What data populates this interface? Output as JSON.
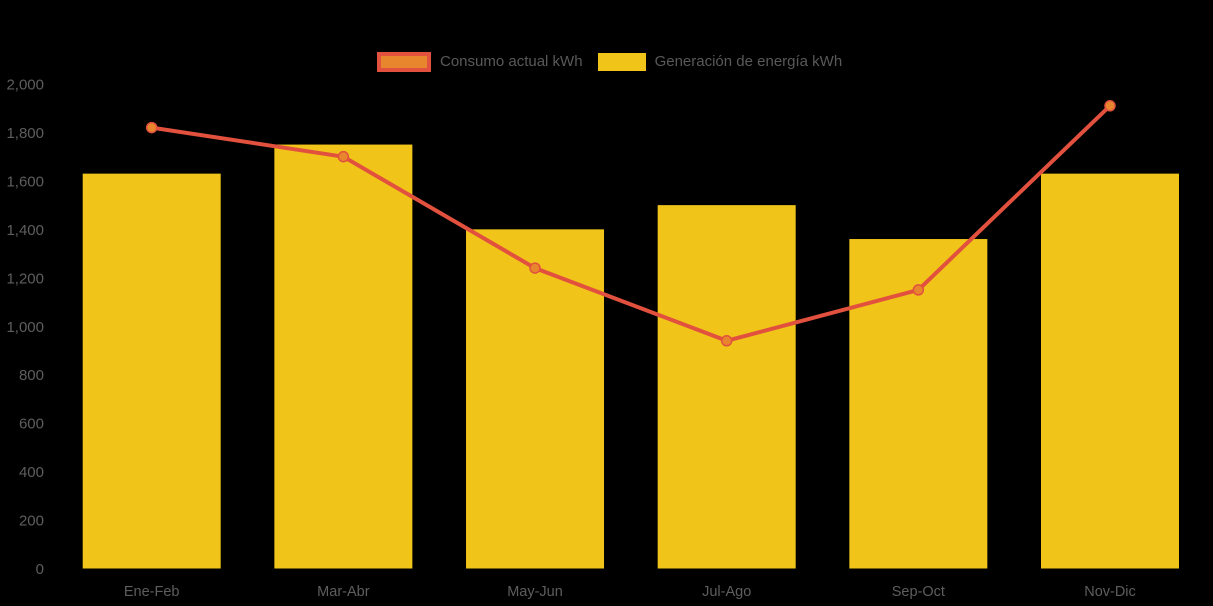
{
  "chart_data": {
    "type": "bar+line",
    "categories": [
      "Ene-Feb",
      "Mar-Abr",
      "May-Jun",
      "Jul-Ago",
      "Sep-Oct",
      "Nov-Dic"
    ],
    "series": [
      {
        "name": "Consumo actual kWh",
        "type": "line",
        "color": "#E2513E",
        "marker_fill": "#E8862D",
        "values": [
          1820,
          1700,
          1240,
          940,
          1150,
          1910
        ]
      },
      {
        "name": "Generación de energía kWh",
        "type": "bar",
        "color": "#F0C419",
        "values": [
          1630,
          1750,
          1400,
          1500,
          1360,
          1630
        ]
      }
    ],
    "title": "",
    "xlabel": "",
    "ylabel": "",
    "ylim": [
      0,
      2000
    ],
    "y_ticks": [
      {
        "label": "2,000",
        "value": 2000
      },
      {
        "label": "1,800",
        "value": 1800
      },
      {
        "label": "1,600",
        "value": 1600
      },
      {
        "label": "1,400",
        "value": 1400
      },
      {
        "label": "1,200",
        "value": 1200
      },
      {
        "label": "1,000",
        "value": 1000
      },
      {
        "label": "800",
        "value": 800
      },
      {
        "label": "600",
        "value": 600
      },
      {
        "label": "400",
        "value": 400
      },
      {
        "label": "200",
        "value": 200
      },
      {
        "label": "0",
        "value": 0
      }
    ],
    "grid": "off",
    "legend_position": "top-center",
    "background_color": "#000000",
    "axis_text_color": "#5E5E5E"
  }
}
